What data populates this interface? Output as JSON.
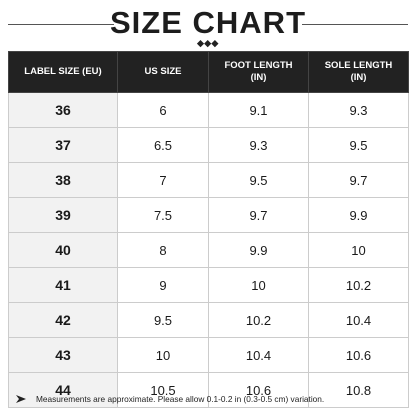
{
  "header": {
    "title": "SIZE CHART"
  },
  "table": {
    "columns": [
      "LABEL SIZE (EU)",
      "US SIZE",
      "FOOT LENGTH (IN)",
      "SOLE LENGTH (IN)"
    ],
    "rows": [
      [
        "36",
        "6",
        "9.1",
        "9.3"
      ],
      [
        "37",
        "6.5",
        "9.3",
        "9.5"
      ],
      [
        "38",
        "7",
        "9.5",
        "9.7"
      ],
      [
        "39",
        "7.5",
        "9.7",
        "9.9"
      ],
      [
        "40",
        "8",
        "9.9",
        "10"
      ],
      [
        "41",
        "9",
        "10",
        "10.2"
      ],
      [
        "42",
        "9.5",
        "10.2",
        "10.4"
      ],
      [
        "43",
        "10",
        "10.4",
        "10.6"
      ],
      [
        "44",
        "10.5",
        "10.6",
        "10.8"
      ]
    ]
  },
  "footnote": "Measurements are approximate. Please allow 0.1-0.2 in (0.3-0.5 cm) variation."
}
